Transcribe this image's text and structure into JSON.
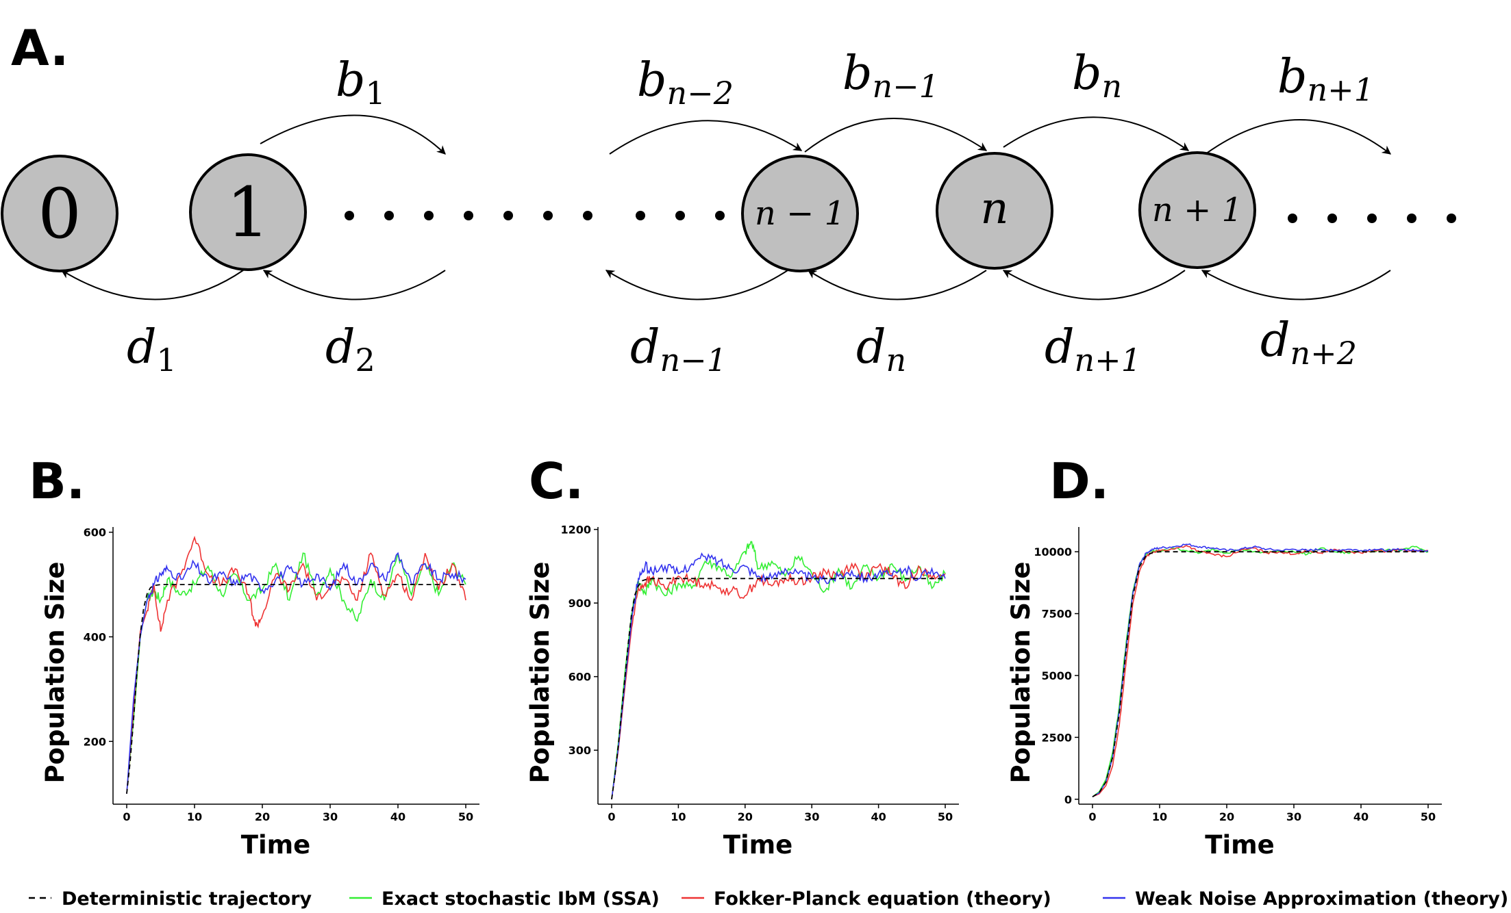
{
  "panels": {
    "a": "A.",
    "b": "B.",
    "c": "C.",
    "d": "D."
  },
  "diagram": {
    "nodes": [
      {
        "label": "0",
        "math": false
      },
      {
        "label": "1",
        "math": false
      },
      {
        "label": "n − 1",
        "math": true
      },
      {
        "label": "n",
        "math": true
      },
      {
        "label": "n + 1",
        "math": true
      }
    ],
    "birth_labels": [
      {
        "base": "b",
        "sub": "1"
      },
      {
        "base": "b",
        "sub": "n−2"
      },
      {
        "base": "b",
        "sub": "n−1"
      },
      {
        "base": "b",
        "sub": "n"
      },
      {
        "base": "b",
        "sub": "n+1"
      }
    ],
    "death_labels": [
      {
        "base": "d",
        "sub": "1"
      },
      {
        "base": "d",
        "sub": "2"
      },
      {
        "base": "d",
        "sub": "n−1"
      },
      {
        "base": "d",
        "sub": "n"
      },
      {
        "base": "d",
        "sub": "n+1"
      },
      {
        "base": "d",
        "sub": "n+2"
      }
    ]
  },
  "legend": [
    {
      "label": "Deterministic trajectory",
      "color": "#000000",
      "style": "dashed"
    },
    {
      "label": "Exact stochastic IbM (SSA)",
      "color": "#33ee33",
      "style": "solid"
    },
    {
      "label": "Fokker-Planck equation (theory)",
      "color": "#ee3333",
      "style": "solid"
    },
    {
      "label": "Weak Noise Approximation (theory)",
      "color": "#3333ee",
      "style": "solid"
    }
  ],
  "chart_data": [
    {
      "panel": "B.",
      "type": "line",
      "xlabel": "Time",
      "ylabel": "Population Size",
      "xlim": [
        0,
        50
      ],
      "ylim": [
        80,
        610
      ],
      "xticks": [
        0,
        10,
        20,
        30,
        40,
        50
      ],
      "yticks": [
        200,
        400,
        600
      ],
      "series": [
        {
          "name": "Deterministic trajectory",
          "x": [
            0,
            0.5,
            1,
            1.5,
            2,
            2.5,
            3,
            3.5,
            4,
            5,
            6,
            8,
            50
          ],
          "values": [
            100,
            160,
            240,
            330,
            405,
            455,
            482,
            494,
            498,
            500,
            500,
            500,
            500
          ]
        },
        {
          "name": "Exact stochastic IbM (SSA)",
          "x": [
            0,
            1,
            2,
            3,
            4,
            5,
            6,
            8,
            10,
            12,
            14,
            16,
            18,
            20,
            22,
            24,
            26,
            28,
            30,
            32,
            34,
            36,
            38,
            40,
            42,
            44,
            46,
            48,
            50
          ],
          "values": [
            100,
            240,
            400,
            470,
            488,
            470,
            510,
            480,
            500,
            535,
            480,
            520,
            470,
            490,
            540,
            470,
            560,
            480,
            530,
            470,
            430,
            510,
            470,
            560,
            480,
            540,
            480,
            540,
            500
          ]
        },
        {
          "name": "Fokker-Planck equation (theory)",
          "x": [
            0,
            1,
            2,
            3,
            4,
            5,
            6,
            8,
            10,
            12,
            14,
            16,
            18,
            19,
            20,
            22,
            24,
            26,
            28,
            30,
            32,
            34,
            36,
            38,
            40,
            42,
            44,
            46,
            48,
            50
          ],
          "values": [
            100,
            260,
            410,
            450,
            500,
            410,
            470,
            520,
            590,
            520,
            500,
            530,
            480,
            420,
            440,
            520,
            490,
            540,
            470,
            500,
            510,
            470,
            560,
            480,
            520,
            470,
            560,
            490,
            540,
            470
          ]
        },
        {
          "name": "Weak Noise Approximation (theory)",
          "x": [
            0,
            1,
            2,
            3,
            4,
            5,
            6,
            8,
            10,
            12,
            14,
            16,
            18,
            20,
            22,
            24,
            26,
            28,
            30,
            32,
            34,
            36,
            38,
            40,
            42,
            44,
            46,
            48,
            50
          ],
          "values": [
            100,
            280,
            400,
            470,
            500,
            520,
            530,
            510,
            540,
            505,
            520,
            500,
            520,
            490,
            510,
            530,
            500,
            520,
            490,
            540,
            500,
            540,
            510,
            560,
            500,
            540,
            510,
            520,
            510
          ]
        }
      ]
    },
    {
      "panel": "C.",
      "type": "line",
      "xlabel": "Time",
      "ylabel": "Population Size",
      "xlim": [
        0,
        50
      ],
      "ylim": [
        80,
        1210
      ],
      "xticks": [
        0,
        10,
        20,
        30,
        40,
        50
      ],
      "yticks": [
        300,
        600,
        900,
        1200
      ],
      "series": [
        {
          "name": "Deterministic trajectory",
          "x": [
            0,
            0.5,
            1,
            1.5,
            2,
            2.5,
            3,
            3.5,
            4,
            4.5,
            5,
            6,
            8,
            50
          ],
          "values": [
            100,
            200,
            320,
            460,
            600,
            740,
            860,
            935,
            970,
            990,
            995,
            1000,
            1000,
            1000
          ]
        },
        {
          "name": "Exact stochastic IbM (SSA)",
          "x": [
            0,
            1,
            2,
            3,
            4,
            5,
            6,
            8,
            10,
            12,
            14,
            16,
            18,
            20,
            21,
            22,
            24,
            26,
            28,
            30,
            32,
            34,
            36,
            38,
            40,
            42,
            44,
            46,
            48,
            50
          ],
          "values": [
            100,
            330,
            620,
            860,
            990,
            940,
            1000,
            930,
            980,
            960,
            1070,
            1050,
            1010,
            1110,
            1150,
            1040,
            1070,
            1010,
            1090,
            1020,
            950,
            1040,
            960,
            1050,
            1000,
            1060,
            990,
            1050,
            960,
            1020
          ]
        },
        {
          "name": "Fokker-Planck equation (theory)",
          "x": [
            0,
            1,
            2,
            3,
            4,
            5,
            6,
            8,
            10,
            12,
            14,
            16,
            18,
            20,
            22,
            24,
            26,
            28,
            30,
            32,
            34,
            36,
            38,
            40,
            42,
            44,
            46,
            48,
            50
          ],
          "values": [
            100,
            300,
            560,
            800,
            960,
            980,
            1000,
            960,
            1010,
            990,
            980,
            960,
            950,
            930,
            1000,
            970,
            1000,
            990,
            1000,
            1030,
            1010,
            1060,
            1000,
            1050,
            1020,
            960,
            1050,
            1000,
            1020
          ]
        },
        {
          "name": "Weak Noise Approximation (theory)",
          "x": [
            0,
            1,
            2,
            3,
            4,
            5,
            6,
            8,
            10,
            12,
            14,
            16,
            18,
            20,
            22,
            24,
            26,
            28,
            30,
            32,
            34,
            36,
            38,
            40,
            42,
            44,
            46,
            48,
            50
          ],
          "values": [
            100,
            310,
            580,
            830,
            1000,
            1050,
            1030,
            1050,
            1020,
            1060,
            1090,
            1070,
            1040,
            1050,
            1010,
            1000,
            1040,
            1020,
            1000,
            990,
            1010,
            1030,
            1000,
            1020,
            1010,
            1040,
            1000,
            1040,
            1000
          ]
        }
      ]
    },
    {
      "panel": "D.",
      "type": "line",
      "xlabel": "Time",
      "ylabel": "Population Size",
      "xlim": [
        0,
        50
      ],
      "ylim": [
        -200,
        11000
      ],
      "xticks": [
        0,
        10,
        20,
        30,
        40,
        50
      ],
      "yticks": [
        0,
        2500,
        5000,
        7500,
        10000
      ],
      "series": [
        {
          "name": "Deterministic trajectory",
          "x": [
            0,
            1,
            2,
            3,
            4,
            5,
            6,
            7,
            8,
            9,
            10,
            12,
            50
          ],
          "values": [
            100,
            270,
            700,
            1700,
            3500,
            6000,
            8200,
            9400,
            9850,
            9970,
            10000,
            10000,
            10000
          ]
        },
        {
          "name": "Exact stochastic IbM (SSA)",
          "x": [
            0,
            1,
            2,
            3,
            4,
            5,
            6,
            7,
            8,
            9,
            10,
            12,
            14,
            16,
            18,
            20,
            22,
            24,
            26,
            28,
            30,
            32,
            34,
            36,
            38,
            40,
            42,
            44,
            46,
            48,
            50
          ],
          "values": [
            100,
            300,
            800,
            1900,
            3800,
            6300,
            8400,
            9500,
            9900,
            10050,
            10000,
            10150,
            10050,
            9950,
            10100,
            9950,
            10100,
            10000,
            9950,
            10050,
            10000,
            9900,
            10150,
            10000,
            9950,
            10050,
            10000,
            10100,
            10050,
            10200,
            10000
          ]
        },
        {
          "name": "Fokker-Planck equation (theory)",
          "x": [
            0,
            1,
            2,
            3,
            4,
            5,
            6,
            7,
            8,
            9,
            10,
            12,
            14,
            16,
            18,
            20,
            22,
            24,
            26,
            28,
            30,
            32,
            34,
            36,
            38,
            40,
            42,
            44,
            46,
            48,
            50
          ],
          "values": [
            100,
            220,
            550,
            1350,
            3000,
            5500,
            7900,
            9200,
            9800,
            10000,
            10050,
            10100,
            10250,
            10000,
            9900,
            9800,
            10050,
            10150,
            9950,
            10000,
            9900,
            10050,
            9950,
            10100,
            10000,
            9950,
            10050,
            10000,
            10100,
            10000,
            10050
          ]
        },
        {
          "name": "Weak Noise Approximation (theory)",
          "x": [
            0,
            1,
            2,
            3,
            4,
            5,
            6,
            7,
            8,
            9,
            10,
            12,
            14,
            16,
            18,
            20,
            22,
            24,
            26,
            28,
            30,
            32,
            34,
            36,
            38,
            40,
            42,
            44,
            46,
            48,
            50
          ],
          "values": [
            100,
            260,
            700,
            1700,
            3600,
            6100,
            8300,
            9500,
            9950,
            10100,
            10150,
            10200,
            10300,
            10200,
            10150,
            10050,
            10100,
            10200,
            10100,
            10050,
            10100,
            10050,
            10100,
            10050,
            10100,
            10050,
            10100,
            10050,
            10100,
            10050,
            10050
          ]
        }
      ]
    }
  ]
}
